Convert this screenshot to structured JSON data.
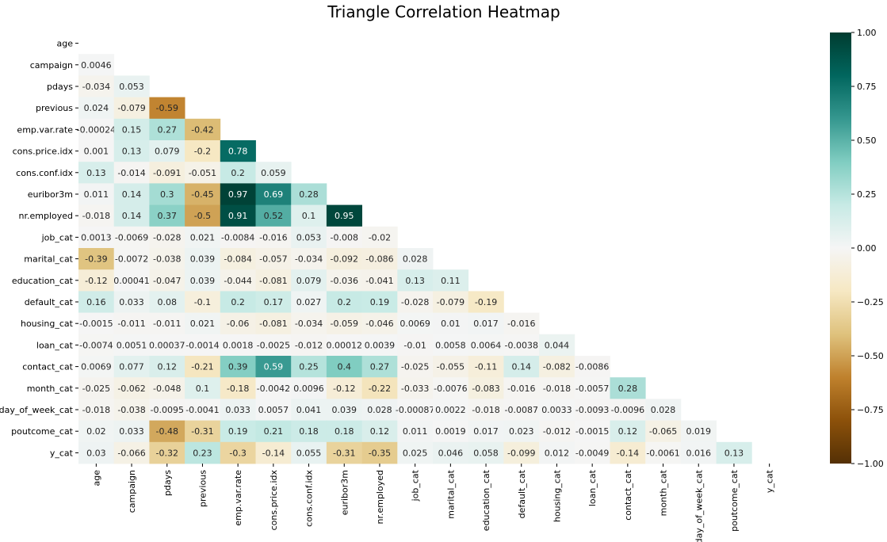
{
  "chart_data": {
    "type": "heatmap",
    "title": "Triangle Correlation Heatmap",
    "labels": [
      "age",
      "campaign",
      "pdays",
      "previous",
      "emp.var.rate",
      "cons.price.idx",
      "cons.conf.idx",
      "euribor3m",
      "nr.employed",
      "job_cat",
      "marital_cat",
      "education_cat",
      "default_cat",
      "housing_cat",
      "loan_cat",
      "contact_cat",
      "month_cat",
      "day_of_week_cat",
      "poutcome_cat",
      "y_cat"
    ],
    "rows": [
      [],
      [
        "0.0046"
      ],
      [
        "-0.034",
        "0.053"
      ],
      [
        "0.024",
        "-0.079",
        "-0.59"
      ],
      [
        "-0.00024",
        "0.15",
        "0.27",
        "-0.42"
      ],
      [
        "0.001",
        "0.13",
        "0.079",
        "-0.2",
        "0.78"
      ],
      [
        "0.13",
        "-0.014",
        "-0.091",
        "-0.051",
        "0.2",
        "0.059"
      ],
      [
        "0.011",
        "0.14",
        "0.3",
        "-0.45",
        "0.97",
        "0.69",
        "0.28"
      ],
      [
        "-0.018",
        "0.14",
        "0.37",
        "-0.5",
        "0.91",
        "0.52",
        "0.1",
        "0.95"
      ],
      [
        "0.0013",
        "-0.0069",
        "-0.028",
        "0.021",
        "-0.0084",
        "-0.016",
        "0.053",
        "-0.008",
        "-0.02"
      ],
      [
        "-0.39",
        "-0.0072",
        "-0.038",
        "0.039",
        "-0.084",
        "-0.057",
        "-0.034",
        "-0.092",
        "-0.086",
        "0.028"
      ],
      [
        "-0.12",
        "0.00041",
        "-0.047",
        "0.039",
        "-0.044",
        "-0.081",
        "0.079",
        "-0.036",
        "-0.041",
        "0.13",
        "0.11"
      ],
      [
        "0.16",
        "0.033",
        "0.08",
        "-0.1",
        "0.2",
        "0.17",
        "0.027",
        "0.2",
        "0.19",
        "-0.028",
        "-0.079",
        "-0.19"
      ],
      [
        "-0.0015",
        "-0.011",
        "-0.011",
        "0.021",
        "-0.06",
        "-0.081",
        "-0.034",
        "-0.059",
        "-0.046",
        "0.0069",
        "0.01",
        "0.017",
        "-0.016"
      ],
      [
        "-0.0074",
        "0.0051",
        "0.00037",
        "-0.0014",
        "0.0018",
        "-0.0025",
        "-0.012",
        "0.00012",
        "0.0039",
        "-0.01",
        "0.0058",
        "0.0064",
        "-0.0038",
        "0.044"
      ],
      [
        "0.0069",
        "0.077",
        "0.12",
        "-0.21",
        "0.39",
        "0.59",
        "0.25",
        "0.4",
        "0.27",
        "-0.025",
        "-0.055",
        "-0.11",
        "0.14",
        "-0.082",
        "-0.0086"
      ],
      [
        "-0.025",
        "-0.062",
        "-0.048",
        "0.1",
        "-0.18",
        "-0.0042",
        "0.0096",
        "-0.12",
        "-0.22",
        "-0.033",
        "-0.0076",
        "-0.083",
        "-0.016",
        "-0.018",
        "-0.0057",
        "0.28"
      ],
      [
        "-0.018",
        "-0.038",
        "-0.0095",
        "-0.0041",
        "0.033",
        "0.0057",
        "0.041",
        "0.039",
        "0.028",
        "-0.00087",
        "0.0022",
        "-0.018",
        "-0.0087",
        "0.0033",
        "-0.0093",
        "-0.0096",
        "0.028"
      ],
      [
        "0.02",
        "0.033",
        "-0.48",
        "-0.31",
        "0.19",
        "0.21",
        "0.18",
        "0.18",
        "0.12",
        "0.011",
        "0.0019",
        "0.017",
        "0.023",
        "-0.012",
        "-0.0015",
        "0.12",
        "-0.065",
        "0.019"
      ],
      [
        "0.03",
        "-0.066",
        "-0.32",
        "0.23",
        "-0.3",
        "-0.14",
        "0.055",
        "-0.31",
        "-0.35",
        "0.025",
        "0.046",
        "0.058",
        "-0.099",
        "0.012",
        "-0.0049",
        "-0.14",
        "-0.0061",
        "0.016",
        "0.13"
      ]
    ],
    "vmin": -1,
    "vmax": 1,
    "colorbar_ticks": [
      "1.00",
      "0.75",
      "0.50",
      "0.25",
      "0.00",
      "−0.25",
      "−0.50",
      "−0.75",
      "−1.00"
    ],
    "colormap": "BrBG",
    "colormap_stops": [
      "#543005",
      "#8c510a",
      "#bf812d",
      "#dfc27d",
      "#f6e8c3",
      "#f5f5f5",
      "#c7eae5",
      "#80cdc1",
      "#35978f",
      "#01665e",
      "#003c30"
    ]
  }
}
